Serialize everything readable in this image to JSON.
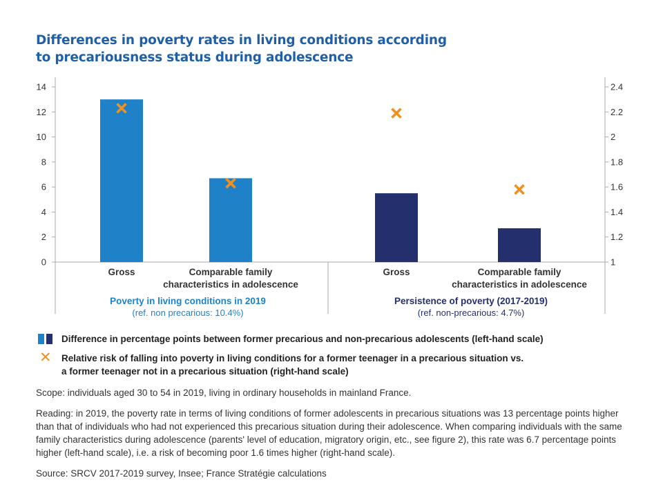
{
  "title_lines": [
    "Differences in poverty rates in living conditions according",
    "to precariousness status during adolescence"
  ],
  "colors": {
    "title": "#1f5fa8",
    "bar_light": "#1f82c8",
    "bar_dark": "#24306e",
    "marker": "#f0901e",
    "group1_label": "#1f82c8",
    "group2_label": "#24306e",
    "axis": "#aaaaaa"
  },
  "chart_data": {
    "type": "bar",
    "categories": [
      "Gross",
      "Comparable family characteristics in adolescence",
      "Gross",
      "Comparable family characteristics in adolescence"
    ],
    "category_label_lines": [
      [
        "Gross"
      ],
      [
        "Comparable family",
        "characteristics in adolescence"
      ],
      [
        "Gross"
      ],
      [
        "Comparable family",
        "characteristics in adolescence"
      ]
    ],
    "groups": [
      {
        "label": "Poverty in living conditions in 2019",
        "ref": "(ref. non precarious: 10.4%)"
      },
      {
        "label": "Persistence of poverty (2017-2019)",
        "ref": "(ref. non-precarious: 4.7%)"
      }
    ],
    "series": [
      {
        "name": "Difference in percentage points between former precarious and non-precarious adolescents (left-hand scale)",
        "type": "bar",
        "axis": "left",
        "values": [
          13.0,
          6.7,
          5.5,
          2.7
        ]
      },
      {
        "name": "Relative risk of falling into poverty in living conditions for a former teenager in a precarious situation vs. a former teenager not in a precarious situation (right-hand scale)",
        "type": "marker",
        "axis": "right",
        "values": [
          2.23,
          1.63,
          2.19,
          1.58
        ]
      }
    ],
    "y_left": {
      "lim": [
        0,
        14
      ],
      "ticks": [
        "0",
        "2",
        "4",
        "6",
        "8",
        "10",
        "12",
        "14"
      ]
    },
    "y_right": {
      "lim": [
        1,
        2.4
      ],
      "ticks": [
        "1",
        "1.2",
        "1.4",
        "1.6",
        "1.8",
        "2",
        "2.2",
        "2.4"
      ]
    },
    "grid": false,
    "legend_position": "bottom"
  },
  "legend": {
    "bar_label": "Difference in percentage points between former precarious and non-precarious adolescents (left-hand scale)",
    "marker_label_lines": [
      "Relative risk of falling into poverty in living conditions for a former teenager in a precarious situation vs.",
      "a former teenager not in a precarious situation (right-hand scale)"
    ],
    "marker_glyph": "✕"
  },
  "notes": {
    "scope": "Scope: individuals aged 30 to 54 in 2019, living in ordinary households in mainland France.",
    "reading": "Reading: in 2019, the poverty rate in terms of living conditions of former adolescents in precarious situations was 13 percentage points higher than that of individuals who had not experienced this precarious situation during their adolescence. When comparing individuals with the same family characteristics during adolescence (parents' level of education, migratory origin, etc., see figure 2), this rate was 6.7 percentage points higher (left-hand scale), i.e. a risk of becoming poor 1.6 times higher (right-hand scale).",
    "source": "Source: SRCV 2017-2019 survey, Insee; France Stratégie calculations"
  }
}
